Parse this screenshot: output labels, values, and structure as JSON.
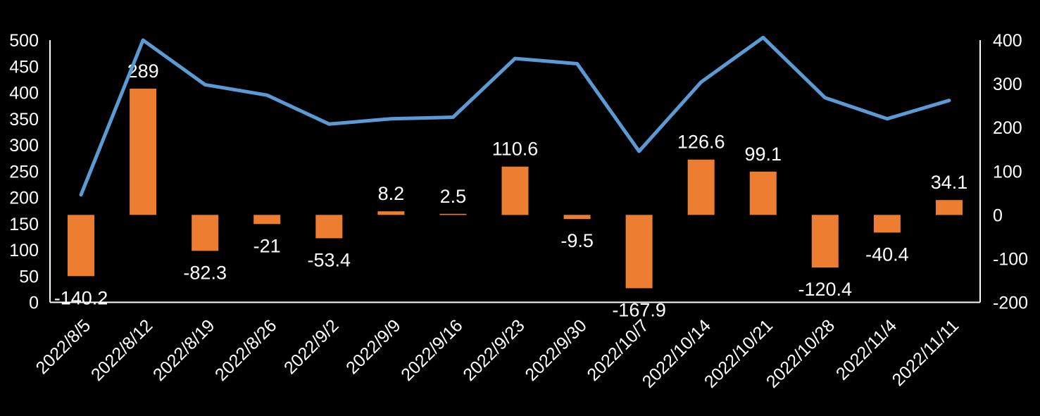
{
  "colors": {
    "background": "#000000",
    "text": "#FFFFFF",
    "bar": "#ED7D31",
    "line": "#5B9BD5",
    "axis": "#FFFFFF"
  },
  "chart_data": {
    "type": "combo",
    "categories": [
      "2022/8/5",
      "2022/8/12",
      "2022/8/19",
      "2022/8/26",
      "2022/9/2",
      "2022/9/9",
      "2022/9/16",
      "2022/9/23",
      "2022/9/30",
      "2022/10/7",
      "2022/10/14",
      "2022/10/21",
      "2022/10/28",
      "2022/11/4",
      "2022/11/11"
    ],
    "series": [
      {
        "name": "bars",
        "type": "bar",
        "axis": "right",
        "color": "#ED7D31",
        "values": [
          -140.2,
          289,
          -82.3,
          -21,
          -53.4,
          8.2,
          2.5,
          110.6,
          -9.5,
          -167.9,
          126.6,
          99.1,
          -120.4,
          -40.4,
          34.1
        ],
        "labels": [
          "-140.2",
          "289",
          "-82.3",
          "-21",
          "-53.4",
          "8.2",
          "2.5",
          "110.6",
          "-9.5",
          "-167.9",
          "126.6",
          "99.1",
          "-120.4",
          "-40.4",
          "34.1"
        ]
      },
      {
        "name": "line",
        "type": "line",
        "axis": "left",
        "color": "#5B9BD5",
        "values": [
          205,
          500,
          415,
          395,
          340,
          350,
          353,
          465,
          455,
          288,
          420,
          505,
          390,
          350,
          385
        ]
      }
    ],
    "left_axis": {
      "min": 0,
      "max": 500,
      "ticks": [
        0,
        50,
        100,
        150,
        200,
        250,
        300,
        350,
        400,
        450,
        500
      ]
    },
    "right_axis": {
      "min": -200,
      "max": 400,
      "ticks": [
        -200,
        -100,
        0,
        100,
        200,
        300,
        400
      ]
    },
    "grid": false,
    "legend": "none",
    "data_labels": "bars-only"
  }
}
